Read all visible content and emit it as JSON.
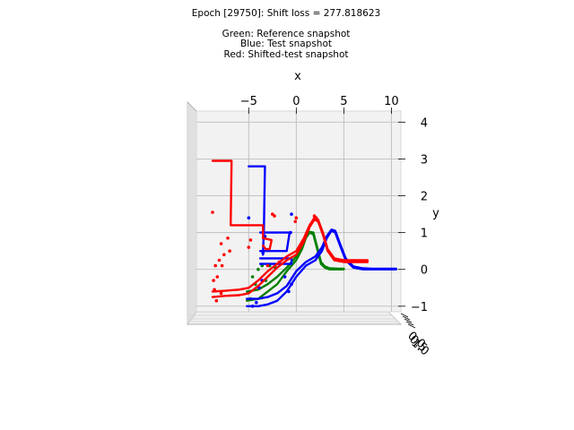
{
  "chart_data": {
    "type": "scatter",
    "title_lines": [
      "Epoch [29750]: Shift loss = 277.818623",
      "Green: Reference snapshot",
      "Blue: Test snapshot",
      "Red: Shifted-test snapshot"
    ],
    "xlabel": "x",
    "ylabel": "y",
    "xlim": [
      -10.5,
      11.0
    ],
    "ylim": [
      -1.15,
      4.3
    ],
    "x_ticks": [
      {
        "value": -5,
        "label": "−5"
      },
      {
        "value": 0,
        "label": "0"
      },
      {
        "value": 5,
        "label": "5"
      },
      {
        "value": 10,
        "label": "10"
      }
    ],
    "y_ticks": [
      {
        "value": -1,
        "label": "−1"
      },
      {
        "value": 0,
        "label": "0"
      },
      {
        "value": 1,
        "label": "1"
      },
      {
        "value": 2,
        "label": "2"
      },
      {
        "value": 3,
        "label": "3"
      },
      {
        "value": 4,
        "label": "4"
      }
    ],
    "z_ticks": [
      {
        "label": "0.0"
      },
      {
        "label": "0.5"
      },
      {
        "label": "1.0"
      }
    ],
    "grid": true,
    "series": [
      {
        "name": "Reference snapshot",
        "color": "#008000",
        "lines": [
          [
            [
              -5.2,
              -0.85
            ],
            [
              -4.0,
              -0.8
            ],
            [
              -3.0,
              -0.6
            ],
            [
              -2.0,
              -0.4
            ],
            [
              -1.0,
              -0.05
            ],
            [
              0.0,
              0.25
            ],
            [
              0.6,
              0.55
            ],
            [
              1.0,
              0.85
            ],
            [
              1.4,
              1.0
            ],
            [
              1.8,
              0.95
            ],
            [
              2.2,
              0.55
            ],
            [
              2.6,
              0.15
            ],
            [
              3.0,
              0.05
            ],
            [
              3.5,
              0.0
            ],
            [
              4.5,
              0.0
            ],
            [
              5.0,
              0.0
            ]
          ],
          [
            [
              -5.2,
              -0.6
            ],
            [
              -4.0,
              -0.55
            ],
            [
              -3.0,
              -0.4
            ],
            [
              -2.0,
              -0.2
            ],
            [
              -1.0,
              0.05
            ],
            [
              0.0,
              0.35
            ],
            [
              0.6,
              0.6
            ],
            [
              1.0,
              0.9
            ],
            [
              1.4,
              1.02
            ],
            [
              1.8,
              1.0
            ],
            [
              2.2,
              0.6
            ],
            [
              2.6,
              0.2
            ],
            [
              3.0,
              0.08
            ],
            [
              3.5,
              0.03
            ],
            [
              4.5,
              0.02
            ],
            [
              5.0,
              0.02
            ]
          ]
        ],
        "points": [
          [
            -4.8,
            -0.8
          ],
          [
            -4.3,
            -0.4
          ],
          [
            -4.6,
            -0.2
          ],
          [
            -4.0,
            0.0
          ],
          [
            -3.6,
            0.1
          ],
          [
            -2.8,
            0.1
          ],
          [
            -2.2,
            0.05
          ],
          [
            -3.2,
            -0.3
          ]
        ]
      },
      {
        "name": "Test snapshot",
        "color": "#0000ff",
        "lines": [
          [
            [
              -5.2,
              -1.0
            ],
            [
              -4.0,
              -1.0
            ],
            [
              -3.0,
              -0.95
            ],
            [
              -2.0,
              -0.85
            ],
            [
              -1.0,
              -0.6
            ],
            [
              0.0,
              -0.2
            ],
            [
              1.0,
              0.1
            ],
            [
              2.0,
              0.25
            ],
            [
              2.7,
              0.5
            ],
            [
              3.2,
              0.85
            ],
            [
              3.7,
              1.05
            ],
            [
              4.1,
              1.0
            ],
            [
              4.6,
              0.65
            ],
            [
              5.2,
              0.25
            ],
            [
              6.0,
              0.05
            ],
            [
              7.0,
              0.0
            ],
            [
              8.0,
              0.0
            ],
            [
              9.0,
              0.0
            ],
            [
              10.5,
              0.0
            ]
          ],
          [
            [
              -5.2,
              -0.8
            ],
            [
              -4.0,
              -0.8
            ],
            [
              -3.0,
              -0.75
            ],
            [
              -2.0,
              -0.65
            ],
            [
              -1.0,
              -0.45
            ],
            [
              0.0,
              -0.05
            ],
            [
              1.0,
              0.2
            ],
            [
              2.0,
              0.35
            ],
            [
              2.7,
              0.6
            ],
            [
              3.2,
              0.9
            ],
            [
              3.7,
              1.08
            ],
            [
              4.1,
              1.05
            ],
            [
              4.6,
              0.7
            ],
            [
              5.2,
              0.3
            ],
            [
              6.0,
              0.08
            ],
            [
              7.0,
              0.03
            ],
            [
              8.0,
              0.02
            ],
            [
              9.0,
              0.02
            ],
            [
              10.5,
              0.02
            ]
          ],
          [
            [
              -5.0,
              2.8
            ],
            [
              -3.3,
              2.8
            ],
            [
              -3.4,
              1.15
            ],
            [
              -3.5,
              0.4
            ]
          ],
          [
            [
              -3.8,
              0.5
            ],
            [
              -1.0,
              0.5
            ],
            [
              -0.7,
              1.0
            ],
            [
              -3.8,
              1.0
            ]
          ],
          [
            [
              -3.8,
              0.15
            ],
            [
              -0.5,
              0.15
            ],
            [
              -0.5,
              0.3
            ],
            [
              -3.8,
              0.3
            ]
          ]
        ],
        "points": [
          [
            -5.0,
            1.4
          ],
          [
            -0.5,
            1.5
          ],
          [
            -0.6,
            1.0
          ],
          [
            -3.3,
            0.9
          ],
          [
            -3.5,
            0.45
          ],
          [
            -3.9,
            -0.5
          ],
          [
            -3.6,
            -0.3
          ],
          [
            -0.8,
            -0.6
          ],
          [
            -0.5,
            -0.4
          ],
          [
            -1.2,
            -0.2
          ],
          [
            -4.6,
            -1.0
          ],
          [
            -4.2,
            -0.9
          ]
        ]
      },
      {
        "name": "Shifted-test snapshot",
        "color": "#ff0000",
        "lines": [
          [
            [
              -8.8,
              -0.75
            ],
            [
              -7.5,
              -0.72
            ],
            [
              -6.0,
              -0.7
            ],
            [
              -5.0,
              -0.65
            ],
            [
              -4.0,
              -0.45
            ],
            [
              -3.0,
              -0.2
            ],
            [
              -2.0,
              0.05
            ],
            [
              -1.0,
              0.25
            ],
            [
              0.0,
              0.4
            ],
            [
              0.8,
              0.75
            ],
            [
              1.4,
              1.15
            ],
            [
              1.9,
              1.35
            ],
            [
              2.3,
              1.3
            ],
            [
              2.8,
              0.95
            ],
            [
              3.3,
              0.5
            ],
            [
              4.0,
              0.25
            ],
            [
              5.0,
              0.2
            ],
            [
              6.0,
              0.2
            ],
            [
              7.5,
              0.2
            ]
          ],
          [
            [
              -8.8,
              -0.6
            ],
            [
              -7.5,
              -0.58
            ],
            [
              -6.0,
              -0.55
            ],
            [
              -5.0,
              -0.5
            ],
            [
              -4.0,
              -0.3
            ],
            [
              -3.0,
              -0.05
            ],
            [
              -2.0,
              0.15
            ],
            [
              -1.0,
              0.35
            ],
            [
              0.0,
              0.5
            ],
            [
              0.8,
              0.85
            ],
            [
              1.4,
              1.2
            ],
            [
              1.9,
              1.4
            ],
            [
              2.3,
              1.35
            ],
            [
              2.8,
              1.0
            ],
            [
              3.3,
              0.55
            ],
            [
              4.0,
              0.3
            ],
            [
              5.0,
              0.25
            ],
            [
              6.0,
              0.25
            ],
            [
              7.5,
              0.25
            ]
          ],
          [
            [
              -8.8,
              2.95
            ],
            [
              -6.8,
              2.95
            ],
            [
              -6.9,
              1.2
            ],
            [
              -3.5,
              1.2
            ],
            [
              -3.5,
              0.85
            ]
          ],
          [
            [
              -3.5,
              0.65
            ],
            [
              -3.2,
              0.55
            ],
            [
              -2.8,
              0.55
            ],
            [
              -2.6,
              0.8
            ],
            [
              -3.5,
              0.85
            ]
          ]
        ],
        "points": [
          [
            -8.8,
            1.55
          ],
          [
            -8.6,
            -0.55
          ],
          [
            -8.3,
            -0.2
          ],
          [
            -8.5,
            0.1
          ],
          [
            -7.9,
            0.7
          ],
          [
            -7.2,
            0.85
          ],
          [
            -7.6,
            0.4
          ],
          [
            -8.1,
            0.25
          ],
          [
            -7.0,
            0.5
          ],
          [
            -2.5,
            1.5
          ],
          [
            -2.3,
            1.45
          ],
          [
            0.0,
            1.4
          ],
          [
            -0.1,
            1.3
          ],
          [
            -4.8,
            0.8
          ],
          [
            -5.0,
            0.6
          ],
          [
            -7.9,
            -0.65
          ],
          [
            -8.4,
            -0.85
          ],
          [
            -3.0,
            0.1
          ],
          [
            -1.8,
            0.2
          ],
          [
            1.9,
            1.45
          ],
          [
            2.1,
            1.4
          ],
          [
            -8.7,
            -0.3
          ],
          [
            -7.8,
            0.1
          ]
        ]
      }
    ]
  }
}
